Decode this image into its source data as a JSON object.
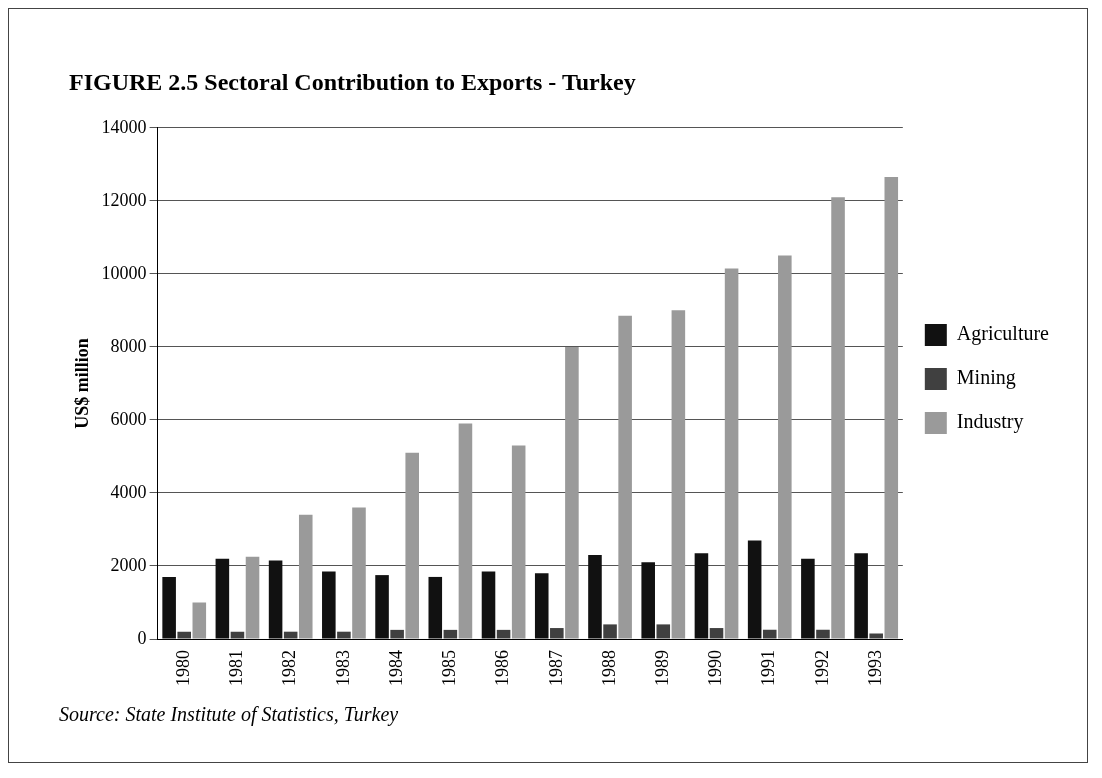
{
  "chart_data": {
    "type": "bar",
    "title": "FIGURE 2.5 Sectoral Contribution to Exports - Turkey",
    "ylabel": "US$ million",
    "categories": [
      "1980",
      "1981",
      "1982",
      "1983",
      "1984",
      "1985",
      "1986",
      "1987",
      "1988",
      "1989",
      "1990",
      "1991",
      "1992",
      "1993"
    ],
    "series": [
      {
        "name": "Agriculture",
        "color": "#111111",
        "values": [
          1700,
          2200,
          2150,
          1850,
          1750,
          1700,
          1850,
          1800,
          2300,
          2100,
          2350,
          2700,
          2200,
          2350
        ]
      },
      {
        "name": "Mining",
        "color": "#404040",
        "values": [
          200,
          200,
          200,
          200,
          250,
          250,
          250,
          300,
          400,
          400,
          300,
          250,
          250,
          150
        ]
      },
      {
        "name": "Industry",
        "color": "#9a9a9a",
        "values": [
          1000,
          2250,
          3400,
          3600,
          5100,
          5900,
          5300,
          8000,
          8850,
          9000,
          10150,
          10500,
          12100,
          12650
        ]
      }
    ],
    "ylim": [
      0,
      14000
    ],
    "yticks": [
      0,
      2000,
      4000,
      6000,
      8000,
      10000,
      12000,
      14000
    ],
    "grid": "y",
    "legend": "right",
    "annotations": [
      "Source: State Institute of Statistics, Turkey"
    ]
  }
}
